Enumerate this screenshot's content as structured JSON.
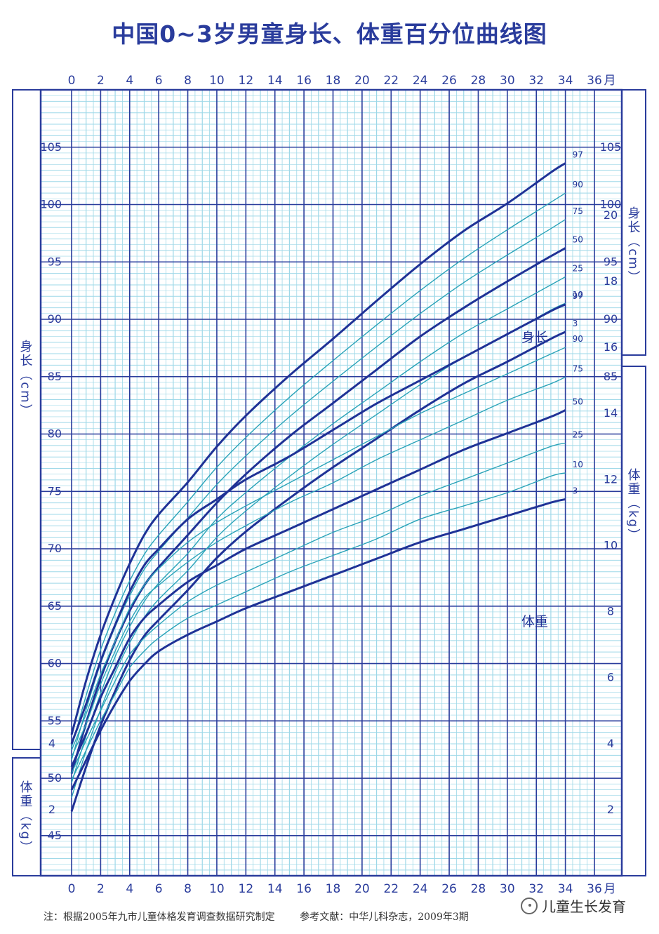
{
  "title": "中国0~3岁男童身长、体重百分位曲线图",
  "note": "注：根据2005年九市儿童体格发育调查数据研究制定        参考文献：中华儿科杂志，2009年3期",
  "watermark": "儿童生长发育",
  "colors": {
    "background": "#ffffff",
    "grid_fine": "#9ed8e8",
    "grid_major": "#2a3c9c",
    "thick_curve": "#1f3296",
    "thin_curve": "#2aa3b8",
    "text": "#2a3c9c"
  },
  "chart_data": {
    "type": "line",
    "x_ticks": [
      "0",
      "2",
      "4",
      "6",
      "8",
      "10",
      "12",
      "14",
      "16",
      "18",
      "20",
      "22",
      "24",
      "26",
      "28",
      "30",
      "32",
      "34",
      "36"
    ],
    "x_unit": "月",
    "length_ticks": [
      "45",
      "50",
      "55",
      "60",
      "65",
      "70",
      "75",
      "80",
      "85",
      "90",
      "95",
      "100",
      "105"
    ],
    "length_label": "身长（cm）",
    "weight_ticks": [
      "2",
      "4",
      "6",
      "8",
      "10",
      "12",
      "14",
      "16",
      "18",
      "20"
    ],
    "weight_label": "体重（kg）",
    "left_weight_ticks": [
      "2",
      "4"
    ],
    "x_range": [
      0,
      36
    ],
    "length_range": [
      41.5,
      110
    ],
    "weight_range": [
      0,
      23.8
    ],
    "x": [
      0,
      1,
      2,
      3,
      4,
      5,
      6,
      8,
      10,
      12,
      15,
      18,
      21,
      24,
      27,
      30,
      33,
      34
    ],
    "length_curve_label": "身长",
    "weight_curve_label": "体重",
    "length_series": [
      {
        "name": "3",
        "thick": true,
        "values": [
          47.1,
          51.0,
          54.6,
          57.6,
          60.3,
          62.4,
          63.8,
          66.4,
          69.2,
          71.5,
          74.4,
          77.1,
          79.6,
          82.1,
          84.4,
          86.3,
          88.3,
          88.9
        ]
      },
      {
        "name": "10",
        "thick": false,
        "values": [
          48.3,
          52.4,
          56.0,
          59.2,
          61.8,
          64.0,
          65.6,
          68.1,
          71.0,
          73.3,
          76.3,
          79.1,
          81.7,
          84.3,
          86.7,
          88.7,
          90.8,
          91.4
        ]
      },
      {
        "name": "25",
        "thick": false,
        "values": [
          49.6,
          53.7,
          57.4,
          60.6,
          63.2,
          65.4,
          67.0,
          69.6,
          72.6,
          74.9,
          78.0,
          80.9,
          83.6,
          86.3,
          88.8,
          90.9,
          93.0,
          93.7
        ]
      },
      {
        "name": "50",
        "thick": true,
        "values": [
          50.4,
          54.8,
          58.7,
          61.9,
          64.6,
          66.8,
          68.4,
          71.2,
          74.0,
          76.5,
          79.8,
          82.7,
          85.6,
          88.5,
          91.0,
          93.3,
          95.5,
          96.2
        ]
      },
      {
        "name": "75",
        "thick": false,
        "values": [
          51.6,
          56.0,
          60.0,
          63.2,
          65.9,
          68.2,
          69.8,
          72.7,
          75.6,
          78.1,
          81.5,
          84.6,
          87.6,
          90.5,
          93.2,
          95.6,
          97.9,
          98.7
        ]
      },
      {
        "name": "90",
        "thick": false,
        "values": [
          52.7,
          57.2,
          61.2,
          64.4,
          67.2,
          69.5,
          71.2,
          74.1,
          77.1,
          79.7,
          83.2,
          86.4,
          89.5,
          92.5,
          95.3,
          97.8,
          100.2,
          101.0
        ]
      },
      {
        "name": "97",
        "thick": true,
        "values": [
          53.8,
          58.5,
          62.5,
          65.8,
          68.7,
          71.2,
          73.0,
          75.8,
          78.9,
          81.6,
          85.1,
          88.3,
          91.6,
          94.8,
          97.7,
          100.1,
          102.8,
          103.6
        ]
      }
    ],
    "weight_series": [
      {
        "name": "3",
        "thick": true,
        "values": [
          2.6,
          3.5,
          4.4,
          5.2,
          5.9,
          6.4,
          6.8,
          7.3,
          7.7,
          8.1,
          8.6,
          9.1,
          9.6,
          10.1,
          10.5,
          10.9,
          11.3,
          11.4
        ]
      },
      {
        "name": "10",
        "thick": false,
        "values": [
          2.9,
          3.8,
          4.7,
          5.5,
          6.3,
          6.8,
          7.2,
          7.8,
          8.2,
          8.6,
          9.2,
          9.7,
          10.2,
          10.8,
          11.2,
          11.6,
          12.1,
          12.2
        ]
      },
      {
        "name": "25",
        "thick": false,
        "values": [
          3.1,
          4.1,
          5.0,
          5.9,
          6.7,
          7.2,
          7.6,
          8.3,
          8.8,
          9.2,
          9.8,
          10.4,
          10.9,
          11.5,
          12.0,
          12.5,
          13.0,
          13.1
        ]
      },
      {
        "name": "50",
        "thick": true,
        "values": [
          3.3,
          4.3,
          5.4,
          6.3,
          7.2,
          7.8,
          8.2,
          8.9,
          9.4,
          9.9,
          10.5,
          11.1,
          11.7,
          12.3,
          12.9,
          13.4,
          13.9,
          14.1
        ]
      },
      {
        "name": "75",
        "thick": false,
        "values": [
          3.6,
          4.6,
          5.8,
          6.8,
          7.7,
          8.4,
          8.8,
          9.5,
          10.1,
          10.6,
          11.3,
          11.9,
          12.6,
          13.2,
          13.8,
          14.4,
          14.9,
          15.1
        ]
      },
      {
        "name": "90",
        "thick": false,
        "values": [
          3.8,
          4.9,
          6.1,
          7.1,
          8.1,
          8.8,
          9.3,
          10.1,
          10.7,
          11.2,
          11.9,
          12.6,
          13.3,
          14.0,
          14.6,
          15.2,
          15.8,
          16.0
        ]
      },
      {
        "name": "97",
        "thick": true,
        "values": [
          4.0,
          5.2,
          6.5,
          7.6,
          8.6,
          9.4,
          9.9,
          10.8,
          11.4,
          12.0,
          12.7,
          13.5,
          14.3,
          15.0,
          15.7,
          16.4,
          17.1,
          17.3
        ]
      }
    ]
  }
}
